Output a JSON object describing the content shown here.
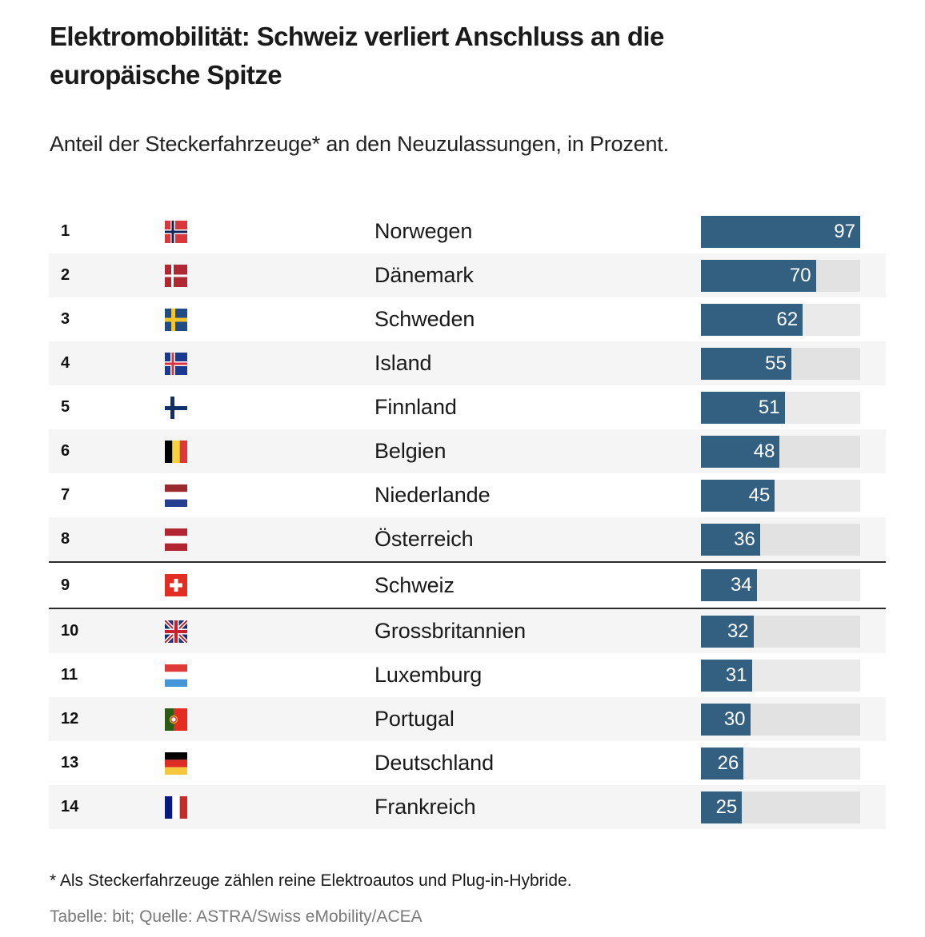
{
  "title": "Elektromobilität: Schweiz verliert Anschluss an die europäische Spitze",
  "subtitle": "Anteil der Steckerfahrzeuge* an den Neuzulassungen, in Prozent.",
  "footnote": "* Als Steckerfahrzeuge zählen reine Elektroautos und Plug-in-Hybride.",
  "source": "Tabelle: bit; Quelle: ASTRA/Swiss eMobility/ACEA",
  "colors": {
    "bar": "#335f80",
    "track": "#e2e2e2",
    "row_alt": "#f5f5f5",
    "text": "#1a1a1a",
    "source_text": "#7a7a7a"
  },
  "rows": [
    {
      "rank": "1",
      "flag": "norway-flag-icon",
      "country": "Norwegen",
      "value": "97"
    },
    {
      "rank": "2",
      "flag": "denmark-flag-icon",
      "country": "Dänemark",
      "value": "70"
    },
    {
      "rank": "3",
      "flag": "sweden-flag-icon",
      "country": "Schweden",
      "value": "62"
    },
    {
      "rank": "4",
      "flag": "iceland-flag-icon",
      "country": "Island",
      "value": "55"
    },
    {
      "rank": "5",
      "flag": "finland-flag-icon",
      "country": "Finnland",
      "value": "51"
    },
    {
      "rank": "6",
      "flag": "belgium-flag-icon",
      "country": "Belgien",
      "value": "48"
    },
    {
      "rank": "7",
      "flag": "netherlands-flag-icon",
      "country": "Niederlande",
      "value": "45"
    },
    {
      "rank": "8",
      "flag": "austria-flag-icon",
      "country": "Österreich",
      "value": "36"
    },
    {
      "rank": "9",
      "flag": "switzerland-flag-icon",
      "country": "Schweiz",
      "value": "34",
      "highlight": true
    },
    {
      "rank": "10",
      "flag": "united-kingdom-flag-icon",
      "country": "Grossbritannien",
      "value": "32"
    },
    {
      "rank": "11",
      "flag": "luxembourg-flag-icon",
      "country": "Luxemburg",
      "value": "31"
    },
    {
      "rank": "12",
      "flag": "portugal-flag-icon",
      "country": "Portugal",
      "value": "30"
    },
    {
      "rank": "13",
      "flag": "germany-flag-icon",
      "country": "Deutschland",
      "value": "26"
    },
    {
      "rank": "14",
      "flag": "france-flag-icon",
      "country": "Frankreich",
      "value": "25"
    }
  ],
  "chart_data": {
    "type": "bar",
    "orientation": "horizontal",
    "title": "Elektromobilität: Schweiz verliert Anschluss an die europäische Spitze",
    "subtitle": "Anteil der Steckerfahrzeuge* an den Neuzulassungen, in Prozent.",
    "categories": [
      "Norwegen",
      "Dänemark",
      "Schweden",
      "Island",
      "Finnland",
      "Belgien",
      "Niederlande",
      "Österreich",
      "Schweiz",
      "Grossbritannien",
      "Luxemburg",
      "Portugal",
      "Deutschland",
      "Frankreich"
    ],
    "ranks": [
      1,
      2,
      3,
      4,
      5,
      6,
      7,
      8,
      9,
      10,
      11,
      12,
      13,
      14
    ],
    "values": [
      97,
      70,
      62,
      55,
      51,
      48,
      45,
      36,
      34,
      32,
      31,
      30,
      26,
      25
    ],
    "xlim": [
      0,
      97
    ],
    "highlighted": "Schweiz",
    "unit": "%",
    "footnote": "* Als Steckerfahrzeuge zählen reine Elektroautos und Plug-in-Hybride.",
    "source": "Tabelle: bit; Quelle: ASTRA/Swiss eMobility/ACEA"
  }
}
